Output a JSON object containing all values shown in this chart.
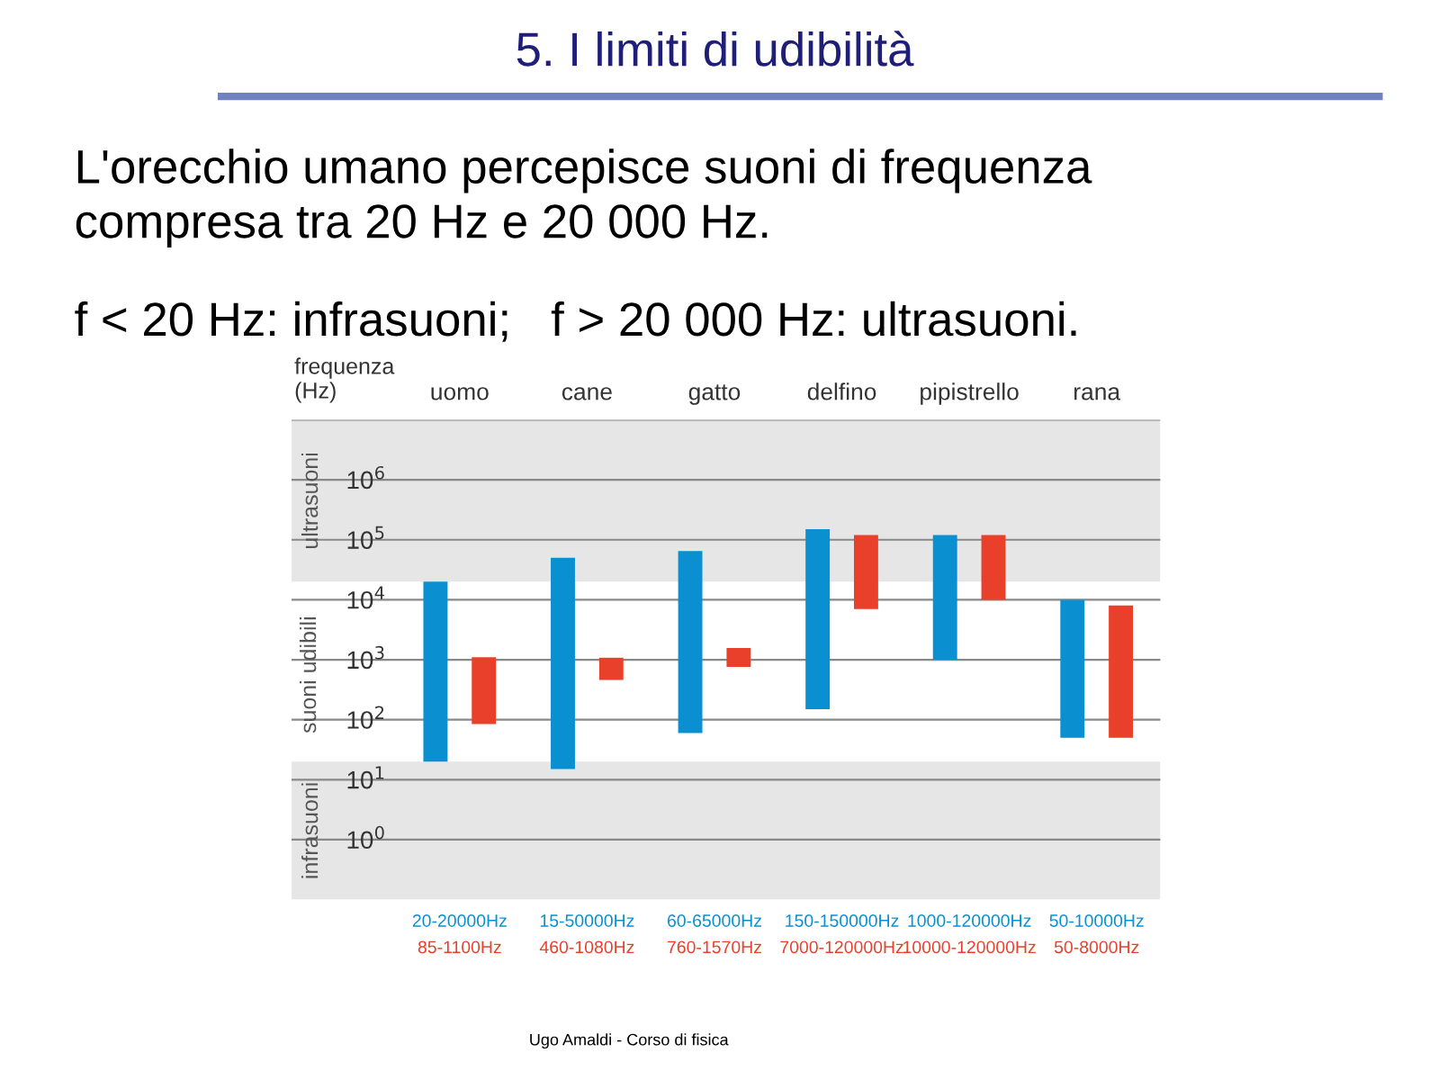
{
  "chart_data": {
    "type": "bar",
    "title": "5. I limiti di udibilità",
    "subtitle": "L'orecchio umano percepisce suoni di frequenza\ncompresa tra 20 Hz e 20 000 Hz.",
    "annotations": [
      "f < 20 Hz: infrasuoni;   f > 20 000 Hz: ultrasuoni.",
      "Ugo Amaldi - Corso di fisica",
      "suoni udibili"
    ],
    "ylabel": "frequenza\n(Hz)",
    "categories": [
      "uomo",
      "cane",
      "gatto",
      "delfino",
      "pipistrello",
      "rana"
    ],
    "series": [
      {
        "color": "#0a8fd0",
        "base": [
          20,
          15,
          60,
          150,
          1000,
          50
        ],
        "values": [
          19980,
          49985,
          64940,
          149850,
          119000,
          9950
        ],
        "value_labels": [
          "20-20000Hz",
          "15-50000Hz",
          "60-65000Hz",
          "150-150000Hz",
          "1000-120000Hz",
          "50-10000Hz"
        ]
      },
      {
        "color": "#e8402a",
        "base": [
          85,
          460,
          760,
          7000,
          10000,
          50
        ],
        "values": [
          1015,
          620,
          810,
          113000,
          110000,
          7950
        ],
        "value_labels": [
          "85-1100Hz",
          "460-1080Hz",
          "760-1570Hz",
          "7000-120000Hz",
          "10000-120000Hz",
          "50-8000Hz"
        ]
      }
    ],
    "log": "y",
    "ylim": [
      0.1,
      10000000
    ],
    "yticks": [
      {
        "value": 1,
        "label": "10$^{0}$"
      },
      {
        "value": 10,
        "label": "10$^{1}$"
      },
      {
        "value": 100,
        "label": "10$^{2}$"
      },
      {
        "value": 1000,
        "label": "10$^{3}$"
      },
      {
        "value": 10000,
        "label": "10$^{4}$"
      },
      {
        "value": 100000,
        "label": "10$^{5}$"
      },
      {
        "value": 1000000,
        "label": "10$^{6}$"
      },
      {
        "value": 10000000,
        "label": null
      }
    ],
    "grid": "y",
    "bands": [
      {
        "axis": "y",
        "from": 0.1,
        "to": 20,
        "label": "infrasuoni",
        "color": "#e6e6e6"
      },
      {
        "axis": "y",
        "from": 20000,
        "to": 10000000,
        "label": "ultrasuoni",
        "color": "#e6e6e6"
      }
    ],
    "legend": false
  }
}
